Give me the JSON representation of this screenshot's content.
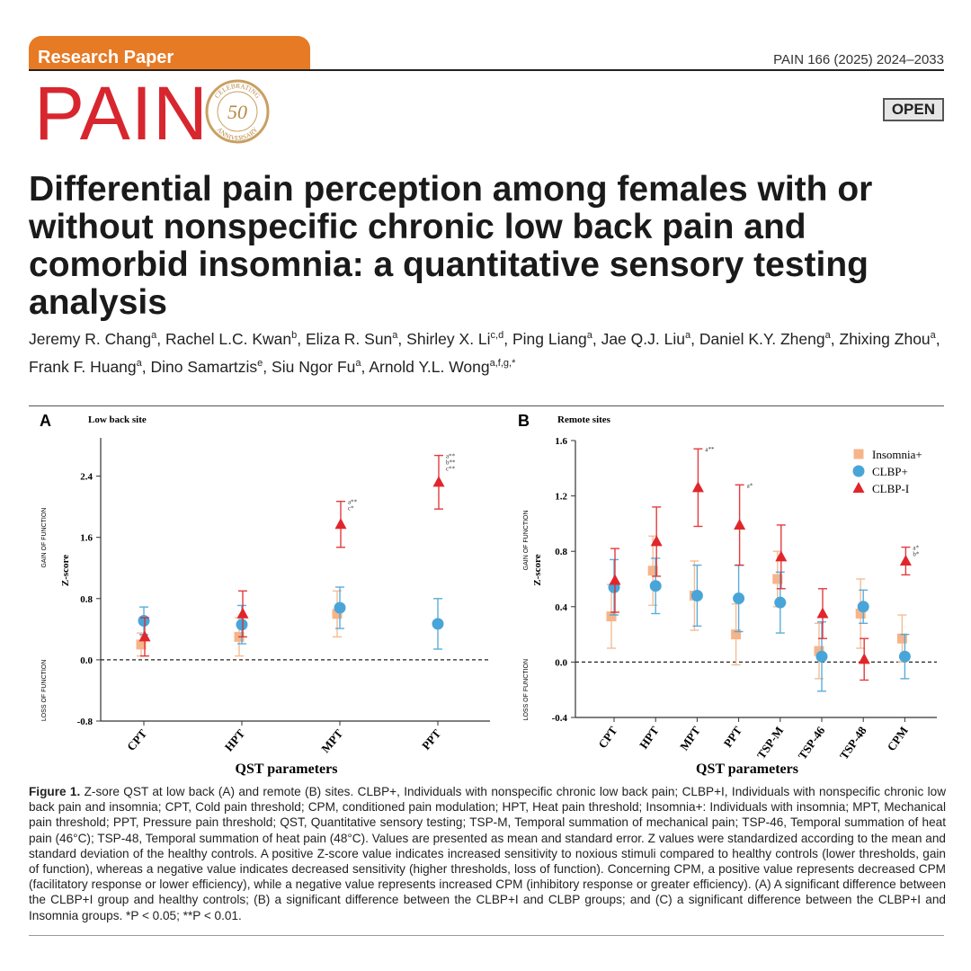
{
  "header": {
    "section": "Research Paper",
    "citation": "PAIN 166 (2025) 2024–2033",
    "journal": "PAIN",
    "emblem_top": "CELEBRATING",
    "emblem_number": "50",
    "emblem_bottom": "ANNIVERSARY",
    "badge": "OPEN"
  },
  "title": "Differential pain perception among females with or without nonspecific chronic low back pain and comorbid insomnia: a quantitative sensory testing analysis",
  "authors": [
    {
      "name": "Jeremy R. Chang",
      "affiliations": "a"
    },
    {
      "name": "Rachel L.C. Kwan",
      "affiliations": "b"
    },
    {
      "name": "Eliza R. Sun",
      "affiliations": "a"
    },
    {
      "name": "Shirley X. Li",
      "affiliations": "c,d"
    },
    {
      "name": "Ping Liang",
      "affiliations": "a"
    },
    {
      "name": "Jae Q.J. Liu",
      "affiliations": "a"
    },
    {
      "name": "Daniel K.Y. Zheng",
      "affiliations": "a"
    },
    {
      "name": "Zhixing Zhou",
      "affiliations": "a"
    },
    {
      "name": "Frank F. Huang",
      "affiliations": "a"
    },
    {
      "name": "Dino Samartzis",
      "affiliations": "e"
    },
    {
      "name": "Siu Ngor Fu",
      "affiliations": "a"
    },
    {
      "name": "Arnold Y.L. Wong",
      "affiliations": "a,f,g,*"
    }
  ],
  "chart_data": [
    {
      "type": "errorbar",
      "panel": "A",
      "title": "Low back site",
      "xlabel": "QST parameters",
      "ylabel": "Z-score",
      "gain_label": "GAIN OF FUNCTION",
      "loss_label": "LOSS OF FUNCTION",
      "categories": [
        "CPT",
        "HPT",
        "MPT",
        "PPT"
      ],
      "ylim": [
        -0.8,
        2.9
      ],
      "yticks": [
        -0.8,
        {
          "value": 0,
          "label": "0.0"
        },
        0.8,
        1.6,
        2.4
      ],
      "series": [
        {
          "color": "#f6b48a",
          "marker": "square",
          "values": [
            0.2,
            0.3,
            0.6,
            null
          ],
          "errors": [
            0.15,
            0.25,
            0.3,
            null
          ]
        },
        {
          "color": "#49a5d8",
          "marker": "circle",
          "values": [
            0.51,
            0.46,
            0.68,
            0.47
          ],
          "errors": [
            0.18,
            0.25,
            0.27,
            0.33
          ]
        },
        {
          "color": "#e0262b",
          "marker": "triangle",
          "values": [
            0.3,
            0.6,
            1.77,
            2.32
          ],
          "errors": [
            0.25,
            0.3,
            0.3,
            0.35
          ]
        }
      ],
      "annotations": [
        {
          "category": "MPT",
          "lines": [
            "a**",
            "c*"
          ]
        },
        {
          "category": "PPT",
          "lines": [
            "a**",
            "b**",
            "c**"
          ]
        }
      ],
      "legend": false
    },
    {
      "type": "errorbar",
      "panel": "B",
      "title": "Remote sites",
      "xlabel": "QST parameters",
      "ylabel": "Z-score",
      "gain_label": "GAIN OF FUNCTION",
      "loss_label": "LOSS OF FUNCTION",
      "categories": [
        "CPT",
        "HPT",
        "MPT",
        "PPT",
        "TSP-M",
        "TSP-46",
        "TSP-48",
        "CPM"
      ],
      "ylim": [
        -0.4,
        1.6
      ],
      "yticks": [
        -0.4,
        {
          "value": 0,
          "label": "0.0"
        },
        0.4,
        0.8,
        1.2,
        1.6
      ],
      "series": [
        {
          "name": "Insomnia+",
          "color": "#f6b48a",
          "marker": "square",
          "values": [
            0.33,
            0.66,
            0.48,
            0.2,
            0.6,
            0.08,
            0.35,
            0.17
          ],
          "errors": [
            0.23,
            0.25,
            0.25,
            0.22,
            0.2,
            0.2,
            0.25,
            0.17
          ]
        },
        {
          "name": "CLBP+",
          "color": "#49a5d8",
          "marker": "circle",
          "values": [
            0.54,
            0.55,
            0.48,
            0.46,
            0.43,
            0.04,
            0.4,
            0.04
          ],
          "errors": [
            0.2,
            0.2,
            0.22,
            0.24,
            0.22,
            0.25,
            0.12,
            0.16
          ]
        },
        {
          "name": "CLBP-I",
          "color": "#e0262b",
          "marker": "triangle",
          "values": [
            0.59,
            0.87,
            1.26,
            0.99,
            0.76,
            0.35,
            0.02,
            0.73
          ],
          "errors": [
            0.23,
            0.25,
            0.28,
            0.29,
            0.23,
            0.18,
            0.15,
            0.1
          ]
        }
      ],
      "annotations": [
        {
          "category": "MPT",
          "lines": [
            "a**"
          ]
        },
        {
          "category": "PPT",
          "lines": [
            "a*"
          ]
        },
        {
          "category": "CPM",
          "lines": [
            "a*",
            "b*"
          ]
        }
      ],
      "legend": true
    }
  ],
  "caption": {
    "label": "Figure 1.",
    "text": "Z-sore QST at low back (A) and remote (B) sites. CLBP+, Individuals with nonspecific chronic low back pain; CLBP+I, Individuals with nonspecific chronic low back pain and insomnia; CPT, Cold pain threshold; CPM, conditioned pain modulation; HPT, Heat pain threshold; Insomnia+: Individuals with insomnia; MPT, Mechanical pain threshold; PPT, Pressure pain threshold; QST, Quantitative sensory testing; TSP-M, Temporal summation of mechanical pain; TSP-46, Temporal summation of heat pain (46°C); TSP-48, Temporal summation of heat pain (48°C). Values are presented as mean and standard error. Z values were standardized according to the mean and standard deviation of the healthy controls. A positive Z-score value indicates increased sensitivity to noxious stimuli compared to healthy controls (lower thresholds, gain of function), whereas a negative value indicates decreased sensitivity (higher thresholds, loss of function). Concerning CPM, a positive value represents decreased CPM (facilitatory response or lower efficiency), while a negative value represents increased CPM (inhibitory response or greater efficiency). (A) A significant difference between the CLBP+I group and healthy controls; (B) a significant difference between the CLBP+I and CLBP groups; and (C) a significant difference between the CLBP+I and Insomnia groups. *P < 0.05; **P < 0.01."
  }
}
